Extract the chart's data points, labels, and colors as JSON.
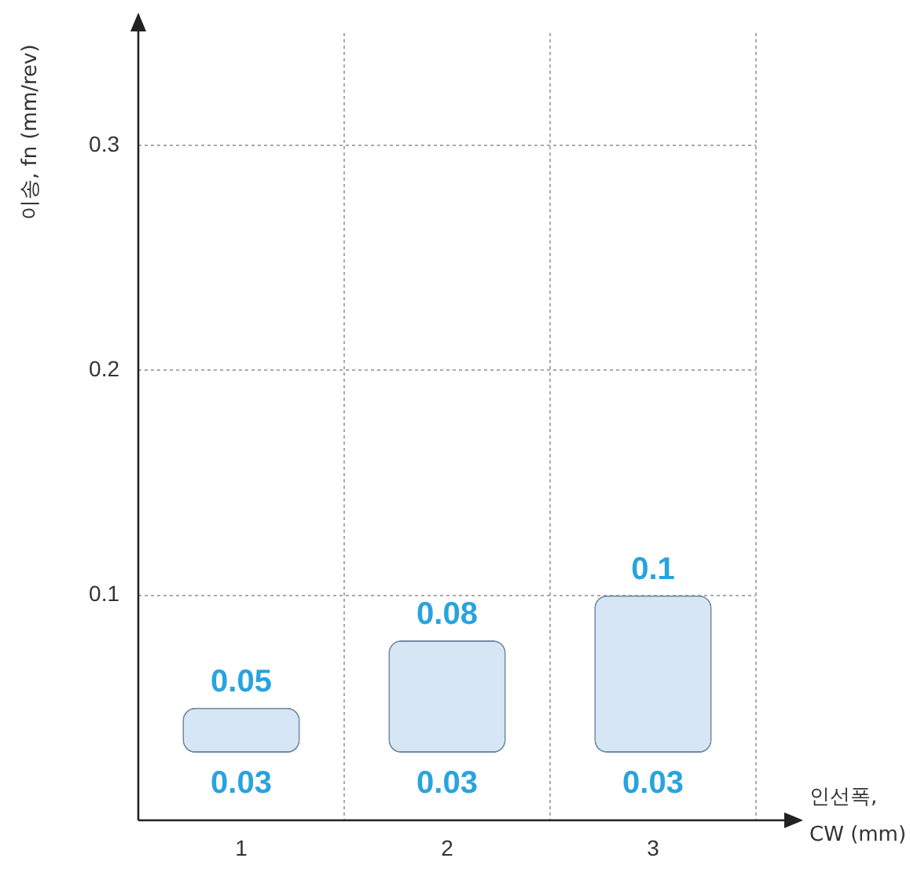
{
  "chart_data": {
    "type": "bar",
    "xlabel": "인선폭, CW (mm)",
    "ylabel": "이송, fn (mm/rev)",
    "categories": [
      "1",
      "2",
      "3"
    ],
    "values": [
      0.02,
      0.05,
      0.07
    ],
    "base": [
      0.03,
      0.03,
      0.03
    ],
    "color": "#d6e6f5",
    "ylim": [
      0,
      0.35
    ],
    "yticks": [
      0.1,
      0.2,
      0.3
    ],
    "grid": true,
    "legend": false,
    "annotations": [
      {
        "text": "0.05",
        "x": "1",
        "y": 0.05
      },
      {
        "text": "0.08",
        "x": "2",
        "y": 0.08
      },
      {
        "text": "0.1",
        "x": "3",
        "y": 0.1
      },
      {
        "text": "0.03",
        "x": "1",
        "y": 0.03
      },
      {
        "text": "0.03",
        "x": "2",
        "y": 0.03
      },
      {
        "text": "0.03",
        "x": "3",
        "y": 0.03
      }
    ]
  }
}
